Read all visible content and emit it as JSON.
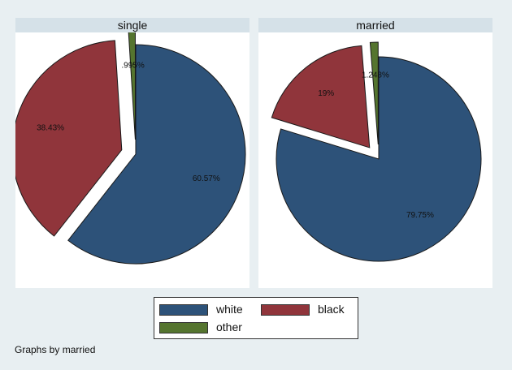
{
  "chart_data": [
    {
      "type": "pie",
      "title": "single",
      "categories": [
        "white",
        "black",
        "other"
      ],
      "values": [
        60.57,
        38.43,
        0.995
      ],
      "labels": [
        "60.57%",
        "38.43%",
        ".995%"
      ],
      "exploded": [
        "black",
        "other"
      ]
    },
    {
      "type": "pie",
      "title": "married",
      "categories": [
        "white",
        "black",
        "other"
      ],
      "values": [
        79.75,
        19,
        1.248
      ],
      "labels": [
        "79.75%",
        "19%",
        "1.248%"
      ],
      "exploded": [
        "black",
        "other"
      ]
    }
  ],
  "colors": {
    "white": "#2d5279",
    "black": "#90353b",
    "other": "#55752f"
  },
  "legend": {
    "placement": "bottom-center",
    "items": [
      "white",
      "black",
      "other"
    ]
  },
  "note": "Graphs by married"
}
